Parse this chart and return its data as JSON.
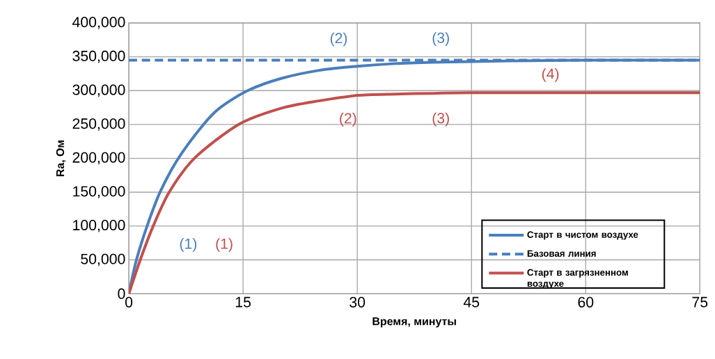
{
  "chart_data": {
    "type": "line",
    "xlabel": "Время, минуты",
    "ylabel": "Ra, Ом",
    "xlim": [
      0,
      75
    ],
    "ylim": [
      0,
      400000
    ],
    "xticks": [
      0,
      15,
      30,
      45,
      60,
      75
    ],
    "yticks": [
      {
        "value": 0,
        "label": "0"
      },
      {
        "value": 50000,
        "label": "50,000"
      },
      {
        "value": 100000,
        "label": "100,000"
      },
      {
        "value": 150000,
        "label": "150,000"
      },
      {
        "value": 200000,
        "label": "200,000"
      },
      {
        "value": 250000,
        "label": "250,000"
      },
      {
        "value": 300000,
        "label": "300,000"
      },
      {
        "value": 350000,
        "label": "350,000"
      },
      {
        "value": 400000,
        "label": "400,000"
      }
    ],
    "grid": true,
    "legend": "bottom right",
    "series": [
      {
        "name": "Старт в чистом воздухе",
        "color": "#4a7ebb",
        "line_style": "solid",
        "x": [
          0,
          1,
          2.4,
          4.1,
          6.5,
          9.8,
          12,
          15.6,
          20,
          25,
          30,
          35,
          40,
          45,
          50,
          60,
          75
        ],
        "values": [
          0,
          50000,
          100000,
          150000,
          200000,
          250000,
          275000,
          300000,
          318000,
          330000,
          336000,
          340000,
          342000,
          343000,
          344000,
          345000,
          345000
        ]
      },
      {
        "name": "Базовая линия",
        "color": "#4a7ebb",
        "line_style": "dashed",
        "x": [
          0,
          75
        ],
        "values": [
          345000,
          345000
        ]
      },
      {
        "name": "Старт в загрязненном воздухе",
        "color": "#c0504d",
        "line_style": "solid",
        "x": [
          0,
          1.5,
          3.2,
          5.3,
          8.6,
          14.4,
          20,
          25,
          30,
          35,
          40,
          45,
          60,
          75
        ],
        "values": [
          0,
          50000,
          100000,
          150000,
          200000,
          250000,
          274000,
          285000,
          293000,
          295000,
          296000,
          297000,
          297000,
          297000
        ]
      }
    ],
    "annotations": [
      "(1)",
      "(1)",
      {
        "text": "(2)",
        "x": 30,
        "y": 336000
      },
      {
        "text": "(2)",
        "x": 30,
        "y": 293000
      },
      {
        "text": "(3)",
        "x": 40,
        "y": 342000
      },
      {
        "text": "(3)",
        "x": 40,
        "y": 296000
      },
      {
        "text": "(4)",
        "x": 60,
        "y": 297000
      }
    ]
  }
}
